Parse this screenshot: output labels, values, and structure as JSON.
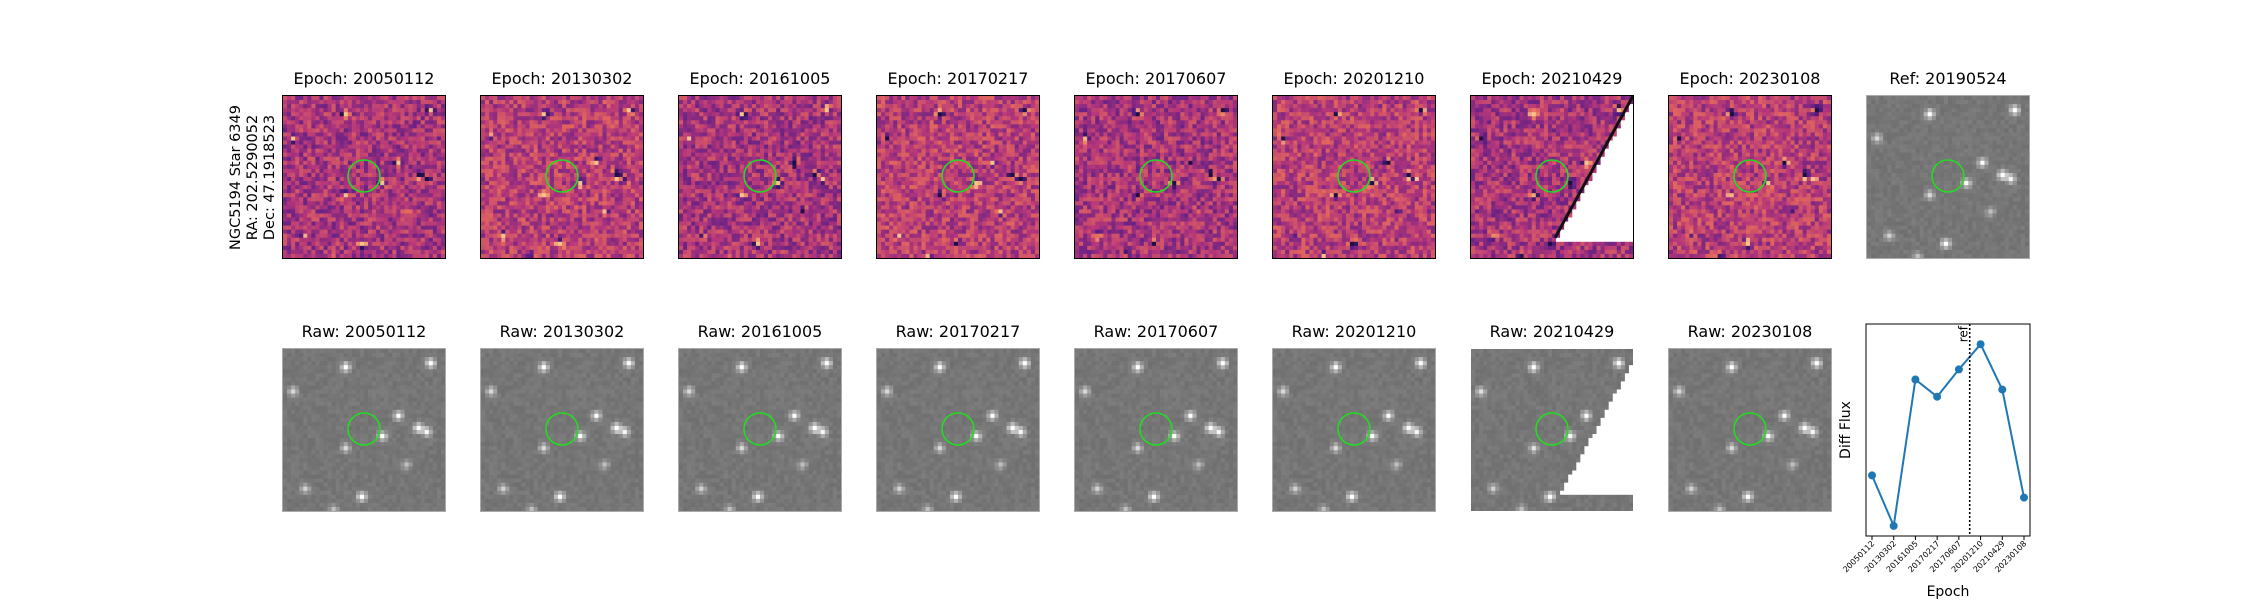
{
  "target": {
    "name": "NGC5194 Star 6349",
    "ra": "RA: 202.5290052",
    "dec": "Dec: 47.1918523"
  },
  "diff_titles": [
    "Epoch: 20050112",
    "Epoch: 20130302",
    "Epoch: 20161005",
    "Epoch: 20170217",
    "Epoch: 20170607",
    "Epoch: 20201210",
    "Epoch: 20210429",
    "Epoch: 20230108"
  ],
  "ref_title": "Ref: 20190524",
  "raw_titles": [
    "Raw: 20050112",
    "Raw: 20130302",
    "Raw: 20161005",
    "Raw: 20170217",
    "Raw: 20170607",
    "Raw: 20201210",
    "Raw: 20210429",
    "Raw: 20230108"
  ],
  "colors": {
    "aperture": "#22dd22",
    "line": "#1f77b4",
    "diff_cmap": [
      "#1d0f45",
      "#5b1e86",
      "#b4367a",
      "#e56a5b",
      "#f8c28d"
    ],
    "raw_background": "#7a7a7a"
  },
  "chart_data": {
    "type": "line",
    "x": [
      "20050112",
      "20130302",
      "20161005",
      "20170217",
      "20170607",
      "20201210",
      "20210429",
      "20230108"
    ],
    "y": [
      0.3,
      -0.2,
      1.25,
      1.08,
      1.35,
      1.6,
      1.15,
      0.08
    ],
    "xlabel": "Epoch",
    "ylabel": "Diff Flux",
    "ref_marker": {
      "label": "ref",
      "position": "between 20170607 and 20201210"
    },
    "ylim": [
      -0.3,
      1.8
    ],
    "grid": false,
    "marker": "circle"
  }
}
